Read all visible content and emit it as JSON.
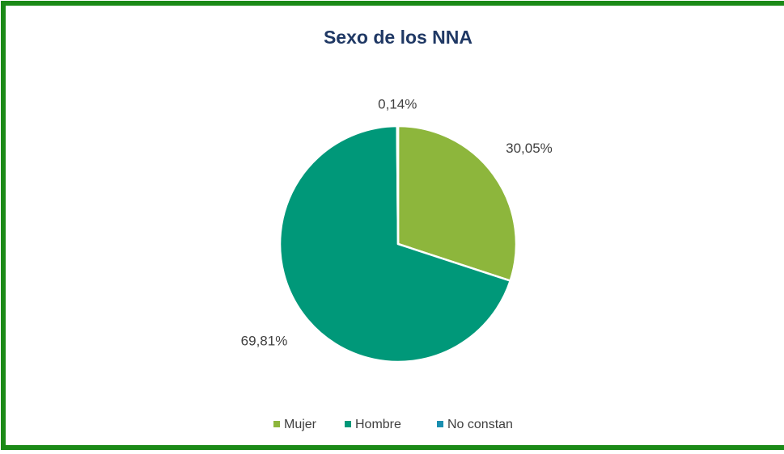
{
  "chart_data": {
    "type": "pie",
    "title": "Sexo de los NNA",
    "categories": [
      "Mujer",
      "Hombre",
      "No constan"
    ],
    "values": [
      30.05,
      69.81,
      0.14
    ],
    "value_labels": [
      "30,05%",
      "69,81%",
      "0,14%"
    ],
    "colors": [
      "#8db63c",
      "#009879",
      "#1a8fb0"
    ],
    "legend": "bottom"
  }
}
